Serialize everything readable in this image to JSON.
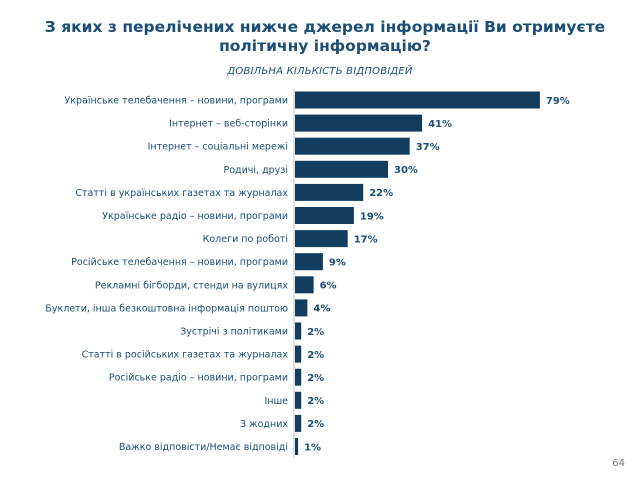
{
  "header": {
    "title": "З яких з перелічених нижче джерел інформації Ви отримуєте політичну інформацію?",
    "subtitle": "ДОВІЛЬНА КІЛЬКІСТЬ ВІДПОВІДЕЙ"
  },
  "chart_data": {
    "type": "bar",
    "orientation": "horizontal",
    "categories": [
      "Українське телебачення – новини, програми",
      "Інтернет – веб-сторінки",
      "Інтернет – соціальні мережі",
      "Родичі, друзі",
      "Статті в українських газетах та журналах",
      "Українське радіо  – новини, програми",
      "Колеги по роботі",
      "Російське телебачення – новини, програми",
      "Рекламні бігборди, стенди на вулицях",
      "Буклети, інша безкоштовна інформація поштою",
      "Зустрічі з політиками",
      "Статті в російських газетах та журналах",
      "Російське радіо  – новини, програми",
      "Інше",
      "З жодних",
      "Важко відповісти/Немає відповіді"
    ],
    "values": [
      79,
      41,
      37,
      30,
      22,
      19,
      17,
      9,
      6,
      4,
      2,
      2,
      2,
      2,
      2,
      1
    ],
    "value_labels": [
      "79%",
      "41%",
      "37%",
      "30%",
      "22%",
      "19%",
      "17%",
      "9%",
      "6%",
      "4%",
      "2%",
      "2%",
      "2%",
      "2%",
      "2%",
      "1%"
    ],
    "unit": "%",
    "xlim": [
      0,
      100
    ],
    "grid": false,
    "legend": "none",
    "colors": {
      "bar": "#123d5f",
      "axis": "#c0c0c0",
      "category_text": "#1d4e75",
      "value_text": "#1d4e75"
    }
  },
  "footer": {
    "page_number": "64"
  }
}
